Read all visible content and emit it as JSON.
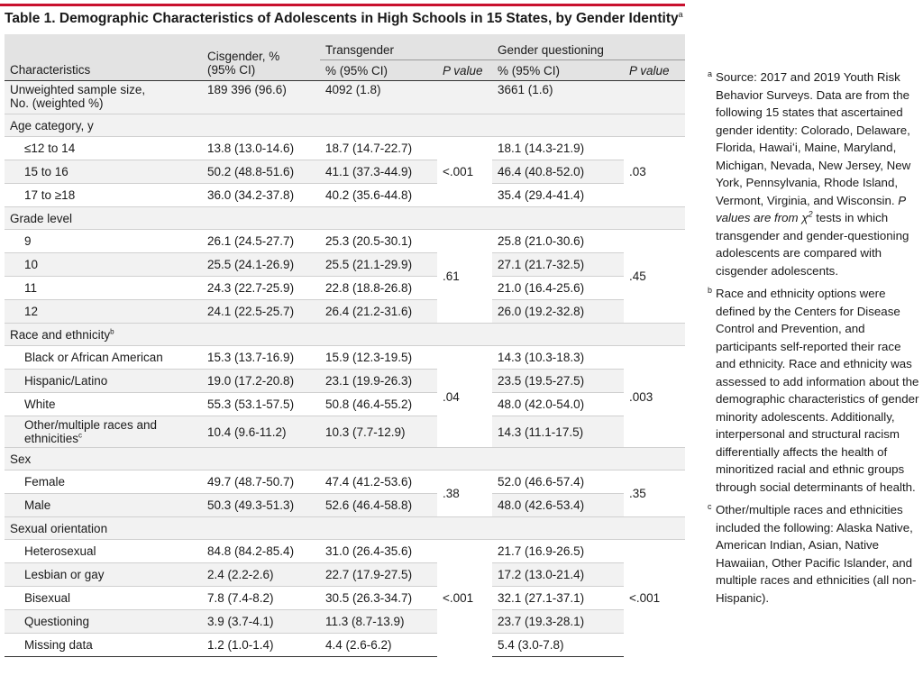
{
  "title": {
    "text": "Table 1. Demographic Characteristics of Adolescents in High Schools in 15 States, by Gender Identity",
    "footnote_mark": "a"
  },
  "header": {
    "characteristics": "Characteristics",
    "cisgender": "Cisgender, %",
    "cisgender_ci": "(95% CI)",
    "transgender": "Transgender",
    "gender_questioning": "Gender questioning",
    "pct_ci": "% (95% CI)",
    "p_value": "P value"
  },
  "rows": {
    "sample_label_1": "Unweighted sample size,",
    "sample_label_2": "No. (weighted %)",
    "sample_cis": "189 396 (96.6)",
    "sample_trans": "4092 (1.8)",
    "sample_gq": "3661 (1.6)",
    "age_cat": "Age category, y",
    "age_1": "≤12 to 14",
    "age_1_cis": "13.8 (13.0-14.6)",
    "age_1_trans": "18.7 (14.7-22.7)",
    "age_1_gq": "18.1 (14.3-21.9)",
    "age_2": "15 to 16",
    "age_2_cis": "50.2 (48.8-51.6)",
    "age_2_trans": "41.1 (37.3-44.9)",
    "age_2_gq": "46.4 (40.8-52.0)",
    "age_3": "17 to ≥18",
    "age_3_cis": "36.0 (34.2-37.8)",
    "age_3_trans": "40.2 (35.6-44.8)",
    "age_3_gq": "35.4 (29.4-41.4)",
    "age_p_trans": "<.001",
    "age_p_gq": ".03",
    "grade_cat": "Grade level",
    "grade_1": "9",
    "grade_1_cis": "26.1 (24.5-27.7)",
    "grade_1_trans": "25.3 (20.5-30.1)",
    "grade_1_gq": "25.8 (21.0-30.6)",
    "grade_2": "10",
    "grade_2_cis": "25.5 (24.1-26.9)",
    "grade_2_trans": "25.5 (21.1-29.9)",
    "grade_2_gq": "27.1 (21.7-32.5)",
    "grade_3": "11",
    "grade_3_cis": "24.3 (22.7-25.9)",
    "grade_3_trans": "22.8 (18.8-26.8)",
    "grade_3_gq": "21.0 (16.4-25.6)",
    "grade_4": "12",
    "grade_4_cis": "24.1 (22.5-25.7)",
    "grade_4_trans": "26.4 (21.2-31.6)",
    "grade_4_gq": "26.0 (19.2-32.8)",
    "grade_p_trans": ".61",
    "grade_p_gq": ".45",
    "race_cat": "Race and ethnicity",
    "race_cat_mark": "b",
    "race_1": "Black or African American",
    "race_1_cis": "15.3 (13.7-16.9)",
    "race_1_trans": "15.9 (12.3-19.5)",
    "race_1_gq": "14.3 (10.3-18.3)",
    "race_2": "Hispanic/Latino",
    "race_2_cis": "19.0 (17.2-20.8)",
    "race_2_trans": "23.1 (19.9-26.3)",
    "race_2_gq": "23.5 (19.5-27.5)",
    "race_3": "White",
    "race_3_cis": "55.3 (53.1-57.5)",
    "race_3_trans": "50.8 (46.4-55.2)",
    "race_3_gq": "48.0 (42.0-54.0)",
    "race_4_a": "Other/multiple races and",
    "race_4_b": "ethnicities",
    "race_4_mark": "c",
    "race_4_cis": "10.4 (9.6-11.2)",
    "race_4_trans": "10.3 (7.7-12.9)",
    "race_4_gq": "14.3 (11.1-17.5)",
    "race_p_trans": ".04",
    "race_p_gq": ".003",
    "sex_cat": "Sex",
    "sex_1": "Female",
    "sex_1_cis": "49.7 (48.7-50.7)",
    "sex_1_trans": "47.4 (41.2-53.6)",
    "sex_1_gq": "52.0 (46.6-57.4)",
    "sex_2": "Male",
    "sex_2_cis": "50.3 (49.3-51.3)",
    "sex_2_trans": "52.6 (46.4-58.8)",
    "sex_2_gq": "48.0 (42.6-53.4)",
    "sex_p_trans": ".38",
    "sex_p_gq": ".35",
    "so_cat": "Sexual orientation",
    "so_1": "Heterosexual",
    "so_1_cis": "84.8 (84.2-85.4)",
    "so_1_trans": "31.0 (26.4-35.6)",
    "so_1_gq": "21.7 (16.9-26.5)",
    "so_2": "Lesbian or gay",
    "so_2_cis": "2.4 (2.2-2.6)",
    "so_2_trans": "22.7 (17.9-27.5)",
    "so_2_gq": "17.2 (13.0-21.4)",
    "so_3": "Bisexual",
    "so_3_cis": "7.8 (7.4-8.2)",
    "so_3_trans": "30.5 (26.3-34.7)",
    "so_3_gq": "32.1 (27.1-37.1)",
    "so_4": "Questioning",
    "so_4_cis": "3.9 (3.7-4.1)",
    "so_4_trans": "11.3 (8.7-13.9)",
    "so_4_gq": "23.7 (19.3-28.1)",
    "so_5": "Missing data",
    "so_5_cis": "1.2 (1.0-1.4)",
    "so_5_trans": "4.4 (2.6-6.2)",
    "so_5_gq": "5.4 (3.0-7.8)",
    "so_p_trans": "<.001",
    "so_p_gq": "<.001"
  },
  "footnotes": {
    "a_mark": "a",
    "a_text_1": "Source: 2017 and 2019 Youth Risk Behavior Surveys. Data are from the following 15 states that ascertained gender identity: Colorado, Delaware, Florida, Hawaiʻi, Maine, Maryland, Michigan, Nevada, New Jersey, New York, Pennsylvania, Rhode Island, Vermont, Virginia, and Wisconsin.",
    "a_text_2_pre": "P values are from χ",
    "a_text_2_sup": "2",
    "a_text_2_post": " tests in which transgender and gender-questioning adolescents are compared with cisgender adolescents.",
    "b_mark": "b",
    "b_text": "Race and ethnicity options were defined by the Centers for Disease Control and Prevention, and participants self-reported their race and ethnicity. Race and ethnicity was assessed to add information about the demographic characteristics of gender minority adolescents. Additionally, interpersonal and structural racism differentially affects the health of minoritized racial and ethnic groups through social determinants of health.",
    "c_mark": "c",
    "c_text": "Other/multiple races and ethnicities included the following: Alaska Native, American Indian, Asian, Native Hawaiian, Other Pacific Islander, and multiple races and ethnicities (all non-Hispanic)."
  },
  "colors": {
    "accent_rule": "#c8102e",
    "header_bg": "#e3e3e3",
    "row_shade": "#f2f2f2"
  }
}
